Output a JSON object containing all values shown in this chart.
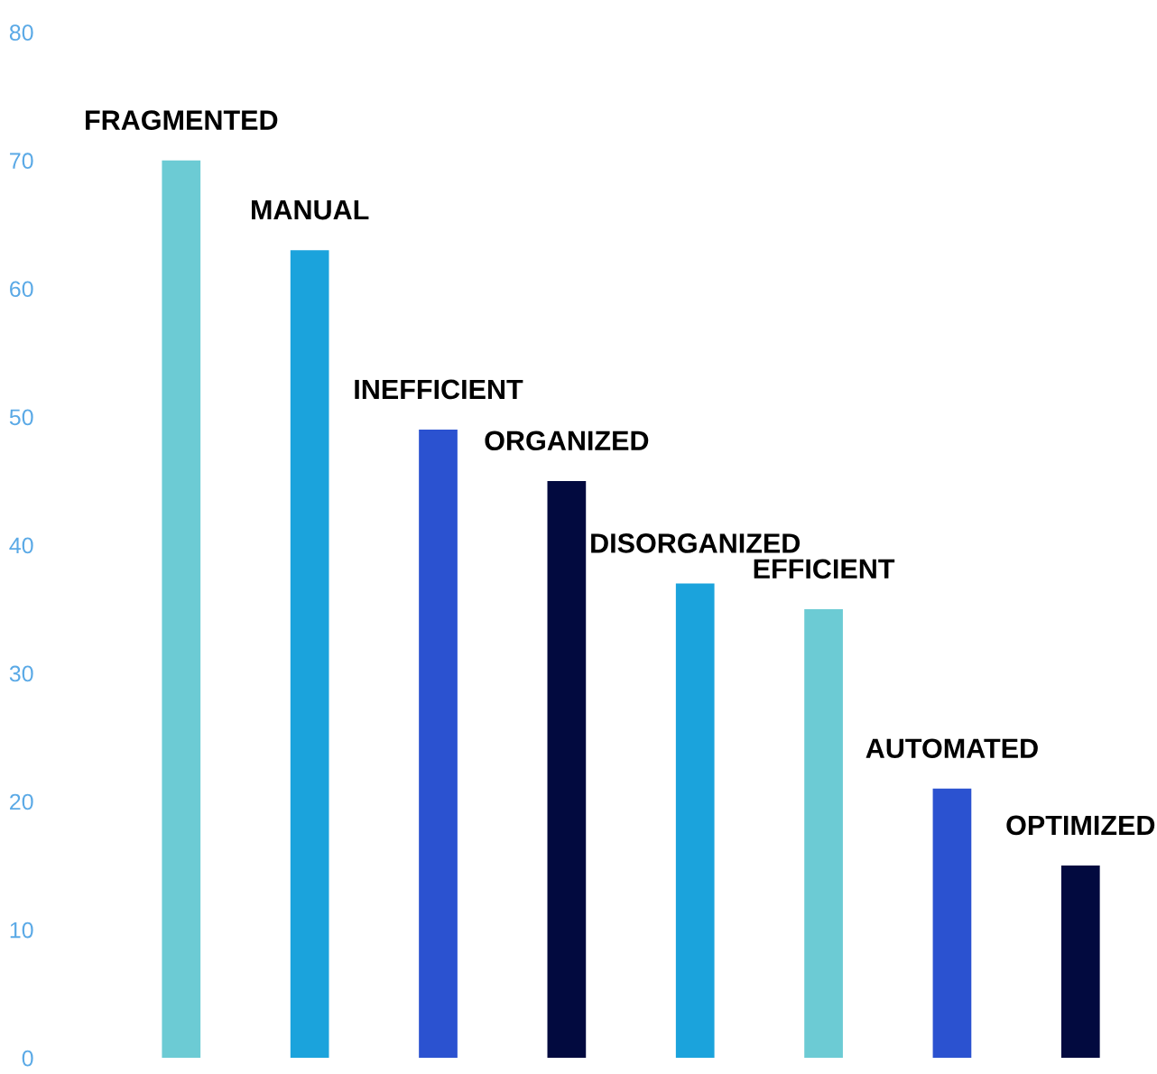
{
  "chart_data": {
    "type": "bar",
    "categories": [
      "FRAGMENTED",
      "MANUAL",
      "INEFFICIENT",
      "ORGANIZED",
      "DISORGANIZED",
      "EFFICIENT",
      "AUTOMATED",
      "OPTIMIZED"
    ],
    "values": [
      70,
      63,
      49,
      45,
      37,
      35,
      21,
      15
    ],
    "colors": [
      "#6ccbd4",
      "#1ba3dc",
      "#2b52d0",
      "#020a3f",
      "#1ba3dc",
      "#6ccbd4",
      "#2b52d0",
      "#020a3f"
    ],
    "ylim": [
      0,
      80
    ],
    "yticks": [
      0,
      10,
      20,
      30,
      40,
      50,
      60,
      70,
      80
    ],
    "tick_labels": "y",
    "grid": false,
    "legend": false
  }
}
